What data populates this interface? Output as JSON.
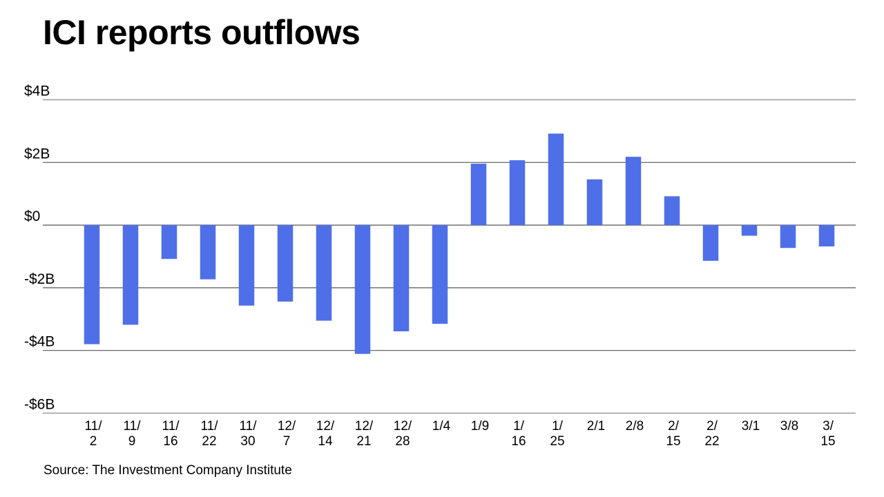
{
  "chart_data": {
    "type": "bar",
    "title": "ICI reports outflows",
    "source": "Source: The Investment Company Institute",
    "xlabel": "",
    "ylabel": "",
    "ylim": [
      -6,
      4
    ],
    "grid": true,
    "bar_color": "#4F6FE8",
    "grid_color": "#555555",
    "y_ticks": [
      {
        "value": 4,
        "label": "$4B"
      },
      {
        "value": 2,
        "label": "$2B"
      },
      {
        "value": 0,
        "label": "$0"
      },
      {
        "value": -2,
        "label": "-$2B"
      },
      {
        "value": -4,
        "label": "-$4B"
      },
      {
        "value": -6,
        "label": "-$6B"
      }
    ],
    "categories": [
      [
        "11/",
        "2"
      ],
      [
        "11/",
        "9"
      ],
      [
        "11/",
        "16"
      ],
      [
        "11/",
        "22"
      ],
      [
        "11/",
        "30"
      ],
      [
        "12/",
        "7"
      ],
      [
        "12/",
        "14"
      ],
      [
        "12/",
        "21"
      ],
      [
        "12/",
        "28"
      ],
      [
        "1/4"
      ],
      [
        "1/9"
      ],
      [
        "1/",
        "16"
      ],
      [
        "1/",
        "25"
      ],
      [
        "2/1"
      ],
      [
        "2/8"
      ],
      [
        "2/",
        "15"
      ],
      [
        "2/",
        "22"
      ],
      [
        "3/1"
      ],
      [
        "3/8"
      ],
      [
        "3/",
        "15"
      ]
    ],
    "values": [
      -3.8,
      -3.18,
      -1.08,
      -1.73,
      -2.57,
      -2.44,
      -3.05,
      -4.11,
      -3.39,
      -3.15,
      1.96,
      2.07,
      2.92,
      1.46,
      2.18,
      0.92,
      -1.14,
      -0.34,
      -0.73,
      -0.68
    ],
    "unit": "$B"
  }
}
